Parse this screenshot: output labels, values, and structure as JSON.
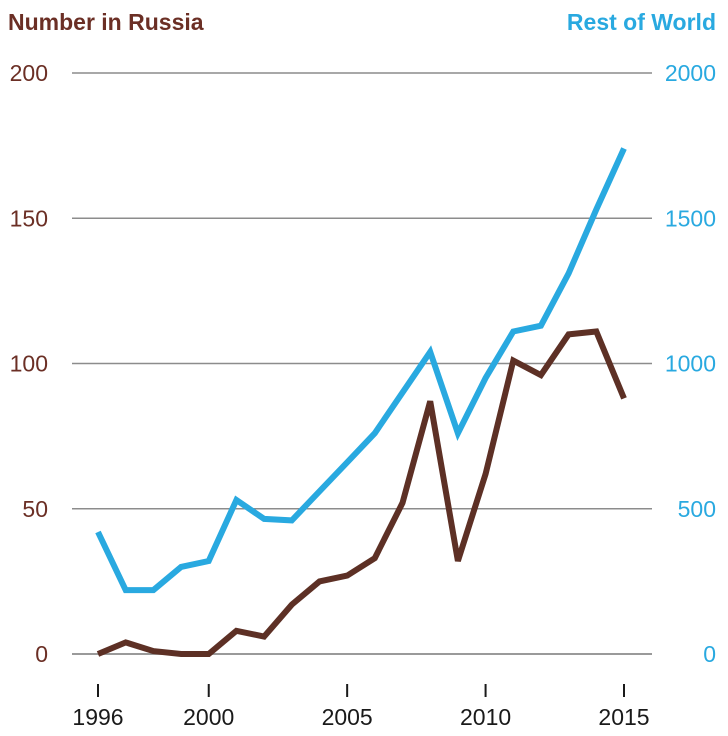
{
  "chart_data": {
    "type": "line",
    "title_left": "Number in Russia",
    "title_right": "Rest of World",
    "x": [
      1996,
      1997,
      1998,
      1999,
      2000,
      2001,
      2002,
      2003,
      2004,
      2005,
      2006,
      2007,
      2008,
      2009,
      2010,
      2011,
      2012,
      2013,
      2014,
      2015
    ],
    "x_tick_labels": [
      "1996",
      "2000",
      "2005",
      "2010",
      "2015"
    ],
    "x_ticks": [
      1996,
      2000,
      2005,
      2010,
      2015
    ],
    "xlim": [
      1996,
      2015
    ],
    "y_left": {
      "label": "Number in Russia",
      "ylim": [
        0,
        200
      ],
      "ticks": [
        0,
        50,
        100,
        150,
        200
      ],
      "tick_labels": [
        "0",
        "50",
        "100",
        "150",
        "200"
      ]
    },
    "y_right": {
      "label": "Rest of World",
      "ylim": [
        0,
        2000
      ],
      "ticks": [
        0,
        500,
        1000,
        1500,
        2000
      ],
      "tick_labels": [
        "0",
        "500",
        "1000",
        "1500",
        "2000"
      ]
    },
    "series": [
      {
        "name": "Russia",
        "axis": "left",
        "color": "#5d3025",
        "values": [
          0,
          4,
          1,
          0,
          0,
          8,
          6,
          17,
          25,
          27,
          33,
          52,
          87,
          32,
          62,
          101,
          96,
          110,
          111,
          88
        ]
      },
      {
        "name": "Rest of World",
        "axis": "right",
        "color": "#29a9e0",
        "values": [
          420,
          220,
          220,
          300,
          320,
          530,
          465,
          460,
          560,
          660,
          760,
          900,
          1040,
          760,
          950,
          1110,
          1130,
          1310,
          1530,
          1740
        ]
      }
    ],
    "grid": true
  }
}
